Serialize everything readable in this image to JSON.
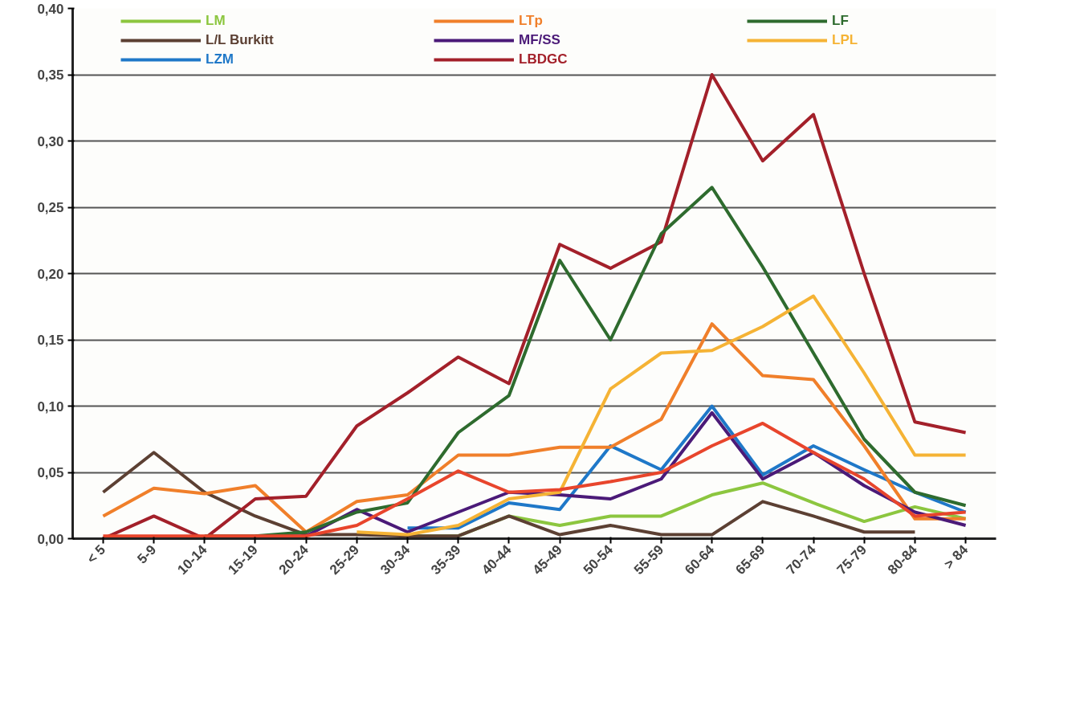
{
  "chart_data": {
    "type": "line",
    "categories": [
      "< 5",
      "5-9",
      "10-14",
      "15-19",
      "20-24",
      "25-29",
      "30-34",
      "35-39",
      "40-44",
      "45-49",
      "50-54",
      "55-59",
      "60-64",
      "65-69",
      "70-74",
      "75-79",
      "80-84",
      "> 84"
    ],
    "ylim": [
      0,
      0.4
    ],
    "yticks": [
      {
        "value": 0,
        "label": "0,00"
      },
      {
        "value": 0.05,
        "label": "0,05"
      },
      {
        "value": 0.1,
        "label": "0,10"
      },
      {
        "value": 0.15,
        "label": "0,15"
      },
      {
        "value": 0.2,
        "label": "0,20"
      },
      {
        "value": 0.25,
        "label": "0,25"
      },
      {
        "value": 0.3,
        "label": "0,30"
      },
      {
        "value": 0.35,
        "label": "0,35"
      },
      {
        "value": 0.4,
        "label": "0,40"
      }
    ],
    "grid": "y",
    "legend": "top",
    "marker": "none",
    "line_style": "solid",
    "series": [
      {
        "name": "LM",
        "color": "#8cc63f",
        "values": [
          null,
          null,
          null,
          null,
          null,
          null,
          0.002,
          0.002,
          0.017,
          0.01,
          0.017,
          0.017,
          0.033,
          0.042,
          0.027,
          0.013,
          0.024,
          0.015
        ]
      },
      {
        "name": "L/L Burkitt",
        "color": "#5c4033",
        "values": [
          0.035,
          0.065,
          0.035,
          0.017,
          0.003,
          0.003,
          0.002,
          0.002,
          0.017,
          0.003,
          0.01,
          0.003,
          0.003,
          0.028,
          0.017,
          0.005,
          0.005,
          null
        ]
      },
      {
        "name": "LZM",
        "color": "#1f78c8",
        "values": [
          null,
          null,
          null,
          null,
          null,
          null,
          0.008,
          0.008,
          0.027,
          0.022,
          0.07,
          0.052,
          0.1,
          0.048,
          0.07,
          0.052,
          0.035,
          0.02
        ]
      },
      {
        "name": "LTp",
        "color": "#f07f2a",
        "values": [
          0.017,
          0.038,
          0.034,
          0.04,
          0.005,
          0.028,
          0.033,
          0.063,
          0.063,
          0.069,
          0.069,
          0.09,
          0.162,
          0.123,
          0.12,
          0.07,
          0.015,
          0.015
        ]
      },
      {
        "name": "MF/SS",
        "color": "#4b1a78",
        "values": [
          null,
          null,
          null,
          0.002,
          0.002,
          0.022,
          0.005,
          0.02,
          0.035,
          0.033,
          0.03,
          0.045,
          0.095,
          0.045,
          0.065,
          0.04,
          0.02,
          0.01
        ]
      },
      {
        "name": "LBDGC",
        "color": "#a3202a",
        "values": [
          0.0,
          0.017,
          0.0,
          0.03,
          0.032,
          0.085,
          0.11,
          0.137,
          0.117,
          0.222,
          0.204,
          0.224,
          0.35,
          0.285,
          0.32,
          0.2,
          0.088,
          0.08
        ]
      },
      {
        "name": "LF",
        "color": "#2e6b2e",
        "values": [
          null,
          null,
          0.002,
          0.002,
          0.005,
          0.02,
          0.027,
          0.08,
          0.108,
          0.21,
          0.15,
          0.23,
          0.265,
          0.205,
          0.14,
          0.075,
          0.035,
          0.025
        ]
      },
      {
        "name": "LPL",
        "color": "#f5b335",
        "values": [
          null,
          null,
          null,
          null,
          null,
          0.005,
          0.003,
          0.01,
          0.03,
          0.035,
          0.113,
          0.14,
          0.142,
          0.16,
          0.183,
          0.125,
          0.063,
          0.063
        ]
      },
      {
        "color": "#e8452c",
        "values": [
          0.002,
          0.002,
          0.002,
          0.002,
          0.002,
          0.01,
          0.03,
          0.051,
          0.035,
          0.037,
          0.043,
          0.05,
          0.07,
          0.087,
          0.065,
          0.045,
          0.017,
          0.02
        ]
      }
    ]
  }
}
